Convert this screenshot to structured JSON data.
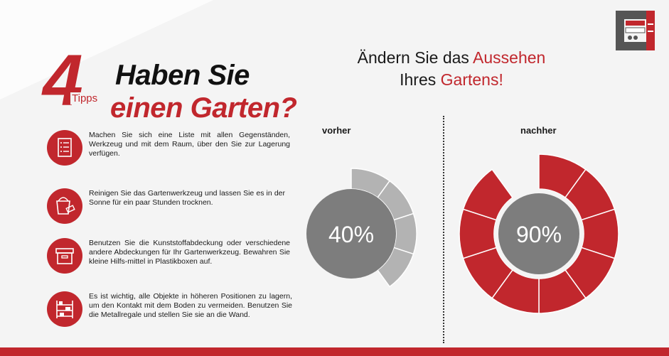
{
  "headline": {
    "number": "4",
    "tag": "Tipps",
    "line1": "Haben Sie",
    "line2": "einen Garten?"
  },
  "tips": [
    {
      "icon": "checklist-icon",
      "text": "Machen Sie sich eine Liste mit allen Gegenständen, Werkzeug und mit dem Raum, über den Sie zur Lagerung verfügen."
    },
    {
      "icon": "bucket-icon",
      "text": "Reinigen Sie das Gartenwerkzeug und lassen Sie es in der Sonne für ein paar Stunden trocknen."
    },
    {
      "icon": "storage-box-icon",
      "text": "Benutzen Sie die Kunststoffabdeckung oder verschiedene andere Abdeckungen für Ihr Gartenwerkzeug. Bewahren Sie kleine Hilfs-mittel in Plastikboxen auf."
    },
    {
      "icon": "shelf-icon",
      "text": "Es ist wichtig, alle Objekte in höheren Positionen zu lagern, um den Kontakt mit dem Boden zu vermeiden. Benutzen Sie die Metallregale und stellen Sie sie an die Wand."
    }
  ],
  "right_title": {
    "line1_plain": "Ändern Sie das ",
    "line1_red": "Aussehen",
    "line2_plain": "Ihres ",
    "line2_red": "Gartens!"
  },
  "comparison": {
    "before_label": "vorher",
    "after_label": "nachher",
    "before_value": 40,
    "before_text": "40%",
    "after_value": 90,
    "after_text": "90%"
  },
  "colors": {
    "accent_red": "#c1272d",
    "center_gray": "#7d7d7d",
    "ring_gray": "#b3b3b3"
  }
}
